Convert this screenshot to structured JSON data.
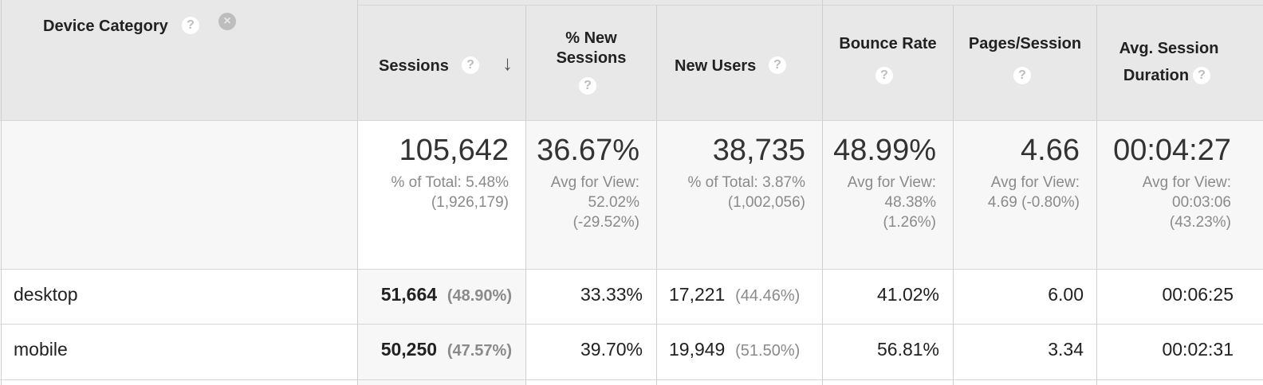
{
  "headers": {
    "device_category": "Device Category",
    "sessions": "Sessions",
    "pct_new_sessions_line1": "% New",
    "pct_new_sessions_line2": "Sessions",
    "new_users": "New Users",
    "bounce_rate": "Bounce Rate",
    "pages_session": "Pages/Session",
    "avg_session_duration_line1": "Avg. Session",
    "avg_session_duration_line2": "Duration"
  },
  "icons": {
    "help": "?",
    "remove": "×",
    "sort": "↓"
  },
  "totals": {
    "sessions": {
      "value": "105,642",
      "sub1": "% of Total: 5.48%",
      "sub2": "(1,926,179)"
    },
    "pct_new_sessions": {
      "value": "36.67%",
      "sub1": "Avg for View:",
      "sub2": "52.02%",
      "sub3": "(-29.52%)"
    },
    "new_users": {
      "value": "38,735",
      "sub1": "% of Total: 3.87%",
      "sub2": "(1,002,056)"
    },
    "bounce_rate": {
      "value": "48.99%",
      "sub1": "Avg for View:",
      "sub2": "48.38%",
      "sub3": "(1.26%)"
    },
    "pages_session": {
      "value": "4.66",
      "sub1": "Avg for View:",
      "sub2": "4.69 (-0.80%)"
    },
    "avg_session_duration": {
      "value": "00:04:27",
      "sub1": "Avg for View:",
      "sub2": "00:03:06",
      "sub3": "(43.23%)"
    }
  },
  "rows": [
    {
      "device": "desktop",
      "sessions": "51,664",
      "sessions_pct": "(48.90%)",
      "pct_new_sessions": "33.33%",
      "new_users": "17,221",
      "new_users_pct": "(44.46%)",
      "bounce_rate": "41.02%",
      "pages_session": "6.00",
      "avg_session_duration": "00:06:25"
    },
    {
      "device": "mobile",
      "sessions": "50,250",
      "sessions_pct": "(47.57%)",
      "pct_new_sessions": "39.70%",
      "new_users": "19,949",
      "new_users_pct": "(51.50%)",
      "bounce_rate": "56.81%",
      "pages_session": "3.34",
      "avg_session_duration": "00:02:31"
    }
  ]
}
